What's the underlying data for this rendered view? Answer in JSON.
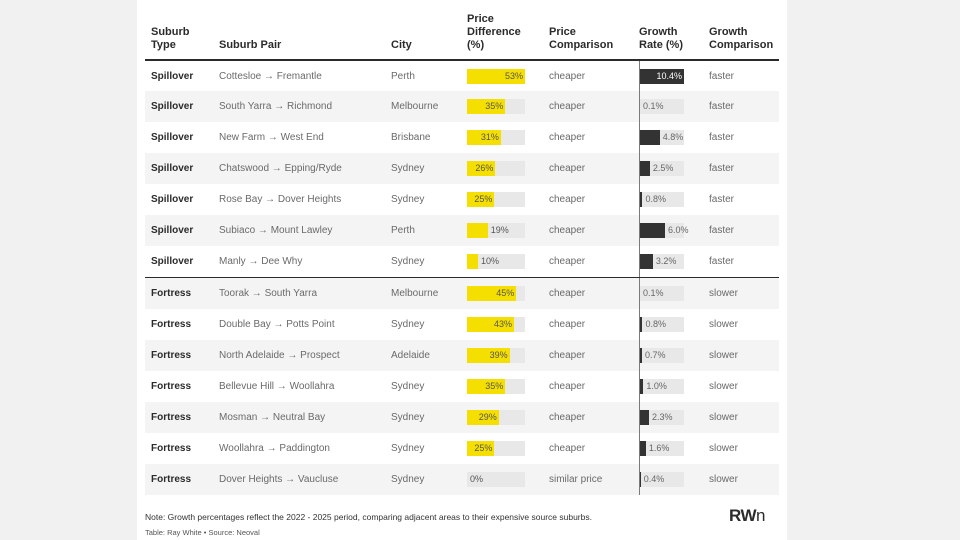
{
  "columns": {
    "type": "Suburb Type",
    "pair": "Suburb Pair",
    "city": "City",
    "pd": "Price Difference (%)",
    "pc": "Price Comparison",
    "gr": "Growth Rate (%)",
    "gc": "Growth Comparison"
  },
  "chart_data": {
    "type": "table",
    "columns": [
      "Suburb Type",
      "Suburb Pair",
      "City",
      "Price Difference (%)",
      "Price Comparison",
      "Growth Rate (%)",
      "Growth Comparison"
    ],
    "rows": [
      {
        "type": "Spillover",
        "pair": "Cottesloe → Fremantle",
        "city": "Perth",
        "price_diff": 53,
        "price_diff_label": "53%",
        "price_comparison": "cheaper",
        "growth": 10.4,
        "growth_label": "10.4%",
        "growth_comparison": "faster"
      },
      {
        "type": "Spillover",
        "pair": "South Yarra → Richmond",
        "city": "Melbourne",
        "price_diff": 35,
        "price_diff_label": "35%",
        "price_comparison": "cheaper",
        "growth": 0.1,
        "growth_label": "0.1%",
        "growth_comparison": "faster"
      },
      {
        "type": "Spillover",
        "pair": "New Farm → West End",
        "city": "Brisbane",
        "price_diff": 31,
        "price_diff_label": "31%",
        "price_comparison": "cheaper",
        "growth": 4.8,
        "growth_label": "4.8%",
        "growth_comparison": "faster"
      },
      {
        "type": "Spillover",
        "pair": "Chatswood → Epping/Ryde",
        "city": "Sydney",
        "price_diff": 26,
        "price_diff_label": "26%",
        "price_comparison": "cheaper",
        "growth": 2.5,
        "growth_label": "2.5%",
        "growth_comparison": "faster"
      },
      {
        "type": "Spillover",
        "pair": "Rose Bay → Dover Heights",
        "city": "Sydney",
        "price_diff": 25,
        "price_diff_label": "25%",
        "price_comparison": "cheaper",
        "growth": 0.8,
        "growth_label": "0.8%",
        "growth_comparison": "faster"
      },
      {
        "type": "Spillover",
        "pair": "Subiaco → Mount Lawley",
        "city": "Perth",
        "price_diff": 19,
        "price_diff_label": "19%",
        "price_comparison": "cheaper",
        "growth": 6.0,
        "growth_label": "6.0%",
        "growth_comparison": "faster"
      },
      {
        "type": "Spillover",
        "pair": "Manly → Dee Why",
        "city": "Sydney",
        "price_diff": 10,
        "price_diff_label": "10%",
        "price_comparison": "cheaper",
        "growth": 3.2,
        "growth_label": "3.2%",
        "growth_comparison": "faster"
      },
      {
        "type": "Fortress",
        "pair": "Toorak → South Yarra",
        "city": "Melbourne",
        "price_diff": 45,
        "price_diff_label": "45%",
        "price_comparison": "cheaper",
        "growth": 0.1,
        "growth_label": "0.1%",
        "growth_comparison": "slower"
      },
      {
        "type": "Fortress",
        "pair": "Double Bay → Potts Point",
        "city": "Sydney",
        "price_diff": 43,
        "price_diff_label": "43%",
        "price_comparison": "cheaper",
        "growth": 0.8,
        "growth_label": "0.8%",
        "growth_comparison": "slower"
      },
      {
        "type": "Fortress",
        "pair": "North Adelaide → Prospect",
        "city": "Adelaide",
        "price_diff": 39,
        "price_diff_label": "39%",
        "price_comparison": "cheaper",
        "growth": 0.7,
        "growth_label": "0.7%",
        "growth_comparison": "slower"
      },
      {
        "type": "Fortress",
        "pair": "Bellevue Hill → Woollahra",
        "city": "Sydney",
        "price_diff": 35,
        "price_diff_label": "35%",
        "price_comparison": "cheaper",
        "growth": 1.0,
        "growth_label": "1.0%",
        "growth_comparison": "slower"
      },
      {
        "type": "Fortress",
        "pair": "Mosman → Neutral Bay",
        "city": "Sydney",
        "price_diff": 29,
        "price_diff_label": "29%",
        "price_comparison": "cheaper",
        "growth": 2.3,
        "growth_label": "2.3%",
        "growth_comparison": "slower"
      },
      {
        "type": "Fortress",
        "pair": "Woollahra → Paddington",
        "city": "Sydney",
        "price_diff": 25,
        "price_diff_label": "25%",
        "price_comparison": "cheaper",
        "growth": 1.6,
        "growth_label": "1.6%",
        "growth_comparison": "slower"
      },
      {
        "type": "Fortress",
        "pair": "Dover Heights → Vaucluse",
        "city": "Sydney",
        "price_diff": 0,
        "price_diff_label": "0%",
        "price_comparison": "similar price",
        "growth": 0.4,
        "growth_label": "0.4%",
        "growth_comparison": "slower"
      }
    ],
    "price_diff_max": 53,
    "growth_max": 10.4,
    "colors": {
      "price_bar": "#f5df00",
      "growth_bar": "#333333",
      "bar_track": "#e8e8e8"
    }
  },
  "footer": {
    "note": "Note: Growth percentages reflect the 2022 - 2025 period, comparing adjacent areas to their expensive source suburbs.",
    "source": "Table: Ray White • Source: Neoval",
    "logo": "RWn"
  }
}
